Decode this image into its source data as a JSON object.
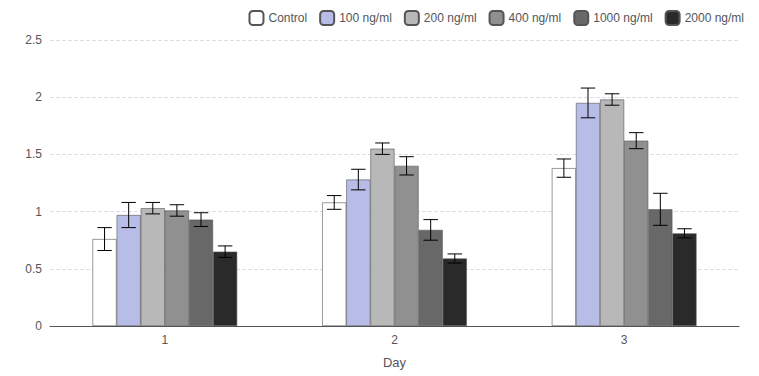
{
  "chart_data": {
    "type": "bar",
    "xlabel": "Day",
    "categories": [
      "1",
      "2",
      "3"
    ],
    "series": [
      {
        "name": "Control",
        "color": "#ffffff",
        "values": [
          0.76,
          1.08,
          1.38
        ],
        "errors": [
          0.1,
          0.06,
          0.08
        ]
      },
      {
        "name": "100 ng/ml",
        "color": "#b8bde8",
        "values": [
          0.97,
          1.28,
          1.95
        ],
        "errors": [
          0.11,
          0.09,
          0.13
        ]
      },
      {
        "name": "200 ng/ml",
        "color": "#b8b8b8",
        "values": [
          1.03,
          1.55,
          1.98
        ],
        "errors": [
          0.05,
          0.05,
          0.05
        ]
      },
      {
        "name": "400 ng/ml",
        "color": "#909090",
        "values": [
          1.01,
          1.4,
          1.62
        ],
        "errors": [
          0.05,
          0.08,
          0.07
        ]
      },
      {
        "name": "1000 ng/ml",
        "color": "#686868",
        "values": [
          0.93,
          0.84,
          1.02
        ],
        "errors": [
          0.06,
          0.09,
          0.14
        ]
      },
      {
        "name": "2000 ng/ml",
        "color": "#2a2a2a",
        "values": [
          0.65,
          0.59,
          0.81
        ],
        "errors": [
          0.05,
          0.04,
          0.04
        ]
      }
    ],
    "ylim": [
      0,
      2.5
    ],
    "yticks": [
      0,
      0.5,
      1,
      1.5,
      2,
      2.5
    ],
    "grid": true,
    "legend": "upper right"
  }
}
